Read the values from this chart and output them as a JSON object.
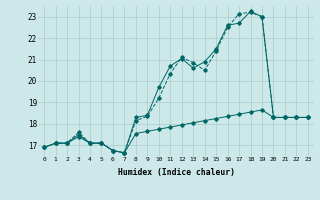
{
  "bg_color": "#cce8e8",
  "grid_color": "#aacccc",
  "line_color": "#006666",
  "xlabel": "Humidex (Indice chaleur)",
  "xlim": [
    -0.5,
    23.5
  ],
  "ylim": [
    16.5,
    23.5
  ],
  "yticks": [
    17,
    18,
    19,
    20,
    21,
    22,
    23
  ],
  "xticks": [
    0,
    1,
    2,
    3,
    4,
    5,
    6,
    7,
    8,
    9,
    10,
    11,
    12,
    13,
    14,
    15,
    16,
    17,
    18,
    19,
    20,
    21,
    22,
    23
  ],
  "s1y": [
    16.9,
    17.1,
    17.1,
    17.6,
    17.1,
    17.1,
    16.75,
    16.65,
    18.15,
    18.35,
    19.2,
    20.35,
    21.1,
    20.85,
    20.5,
    21.4,
    22.5,
    23.15,
    23.2,
    23.0,
    18.3,
    18.3,
    18.3,
    18.3
  ],
  "s2y": [
    16.9,
    17.1,
    17.1,
    17.5,
    17.1,
    17.1,
    16.75,
    16.65,
    18.3,
    18.4,
    19.7,
    20.7,
    21.05,
    20.6,
    20.9,
    21.5,
    22.6,
    22.7,
    23.25,
    23.0,
    18.3,
    18.3,
    18.3,
    18.3
  ],
  "s3y": [
    16.9,
    17.1,
    17.1,
    17.4,
    17.1,
    17.1,
    16.75,
    16.65,
    17.55,
    17.65,
    17.75,
    17.85,
    17.95,
    18.05,
    18.15,
    18.25,
    18.35,
    18.45,
    18.55,
    18.65,
    18.3,
    18.3,
    18.3,
    18.3
  ]
}
